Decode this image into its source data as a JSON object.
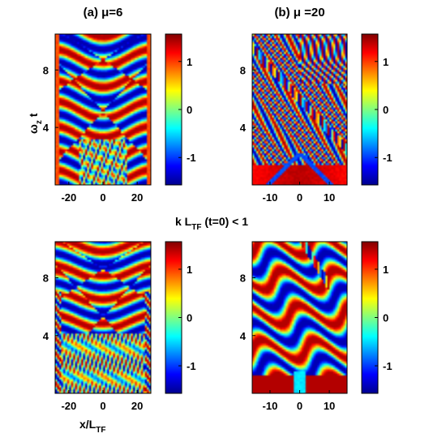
{
  "figure": {
    "middle_label_main": "k L",
    "middle_label_sub": "TF",
    "middle_label_tail": " (t=0) < 1",
    "xlabel_main": "x/L",
    "xlabel_sub": "TF",
    "ylabel_main": "ω",
    "ylabel_sub": "z",
    "ylabel_tail": " t"
  },
  "chart_data": [
    {
      "type": "heatmap",
      "panel": "top-left",
      "title": "(a) μ=6",
      "xlim": [
        -28,
        28
      ],
      "ylim": [
        0,
        10.5
      ],
      "xticks": [
        -20,
        0,
        20
      ],
      "yticks": [
        4,
        8
      ],
      "colorbar": {
        "range": [
          -1.57,
          1.57
        ],
        "ticks": [
          -1,
          0,
          1
        ]
      },
      "pattern": "smooth phase bands with X-shaped soliton crossings near t=5 and t=8.7, fragmented region near bottom center"
    },
    {
      "type": "heatmap",
      "panel": "top-right",
      "title": "(b) μ =20",
      "xlim": [
        -16,
        16
      ],
      "ylim": [
        0,
        10.5
      ],
      "xticks": [
        -10,
        0,
        10
      ],
      "yticks": [
        4,
        8
      ],
      "colorbar": {
        "range": [
          -1.57,
          1.57
        ],
        "ticks": [
          -1,
          0,
          1
        ]
      },
      "pattern": "dense oscillatory phase fringes with diagonal stripes, red band at bottom"
    },
    {
      "type": "heatmap",
      "panel": "bottom-left",
      "title": "",
      "xlim": [
        -28,
        28
      ],
      "ylim": [
        0,
        10.5
      ],
      "xticks": [
        -20,
        0,
        20
      ],
      "yticks": [
        4,
        8
      ],
      "colorbar": {
        "range": [
          -1.57,
          1.57
        ],
        "ticks": [
          -1,
          0,
          1
        ]
      },
      "pattern": "smooth phase bands with X-shaped crossings and dense fragmented lower region"
    },
    {
      "type": "heatmap",
      "panel": "bottom-right",
      "title": "",
      "xlim": [
        -16,
        16
      ],
      "ylim": [
        0,
        10.5
      ],
      "xticks": [
        -10,
        0,
        10
      ],
      "yticks": [
        4,
        8
      ],
      "colorbar": {
        "range": [
          -1.57,
          1.57
        ],
        "ticks": [
          -1,
          0,
          1
        ]
      },
      "pattern": "broad wavy phase bands with a diagonal fringe streak in upper right"
    }
  ]
}
